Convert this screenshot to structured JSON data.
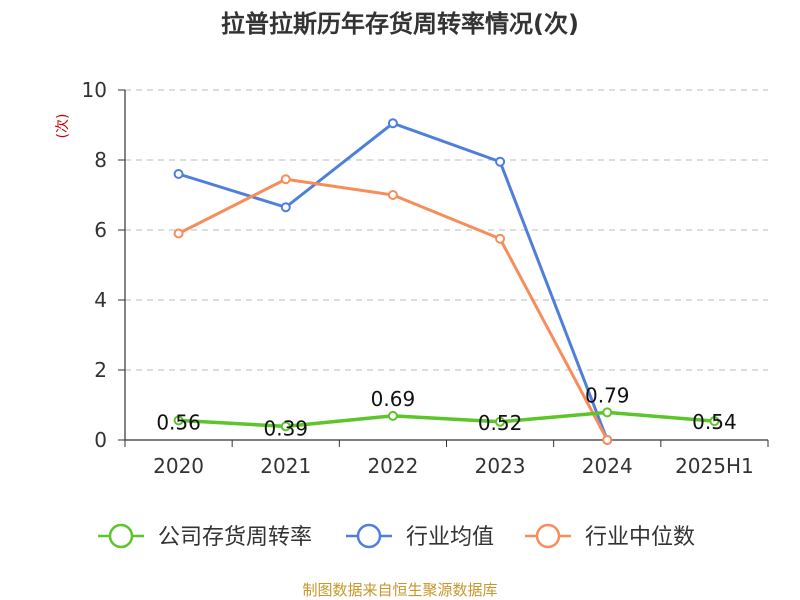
{
  "chart_data": {
    "type": "line",
    "title": "拉普拉斯历年存货周转率情况(次)",
    "ylabel": "(次)",
    "xlabel": "",
    "categories": [
      "2020",
      "2021",
      "2022",
      "2023",
      "2024",
      "2025H1"
    ],
    "ylim": [
      0,
      10
    ],
    "yticks": [
      "0",
      "2",
      "4",
      "6",
      "8",
      "10"
    ],
    "grid": true,
    "legend_position": "bottom",
    "series": [
      {
        "name": "公司存货周转率",
        "color": "#5cc529",
        "marker": "circle",
        "values": [
          0.56,
          0.39,
          0.69,
          0.52,
          0.79,
          0.54
        ],
        "labels": [
          "0.56",
          "0.39",
          "0.69",
          "0.52",
          "0.79",
          "0.54"
        ]
      },
      {
        "name": "行业均值",
        "color": "#4f7fdb",
        "marker": "circle",
        "values": [
          7.6,
          6.65,
          9.05,
          7.95,
          0.0,
          null
        ]
      },
      {
        "name": "行业中位数",
        "color": "#f68d5a",
        "marker": "circle",
        "values": [
          5.9,
          7.45,
          7.0,
          5.75,
          0.0,
          null
        ]
      }
    ]
  },
  "footer": {
    "source": "制图数据来自恒生聚源数据库"
  }
}
